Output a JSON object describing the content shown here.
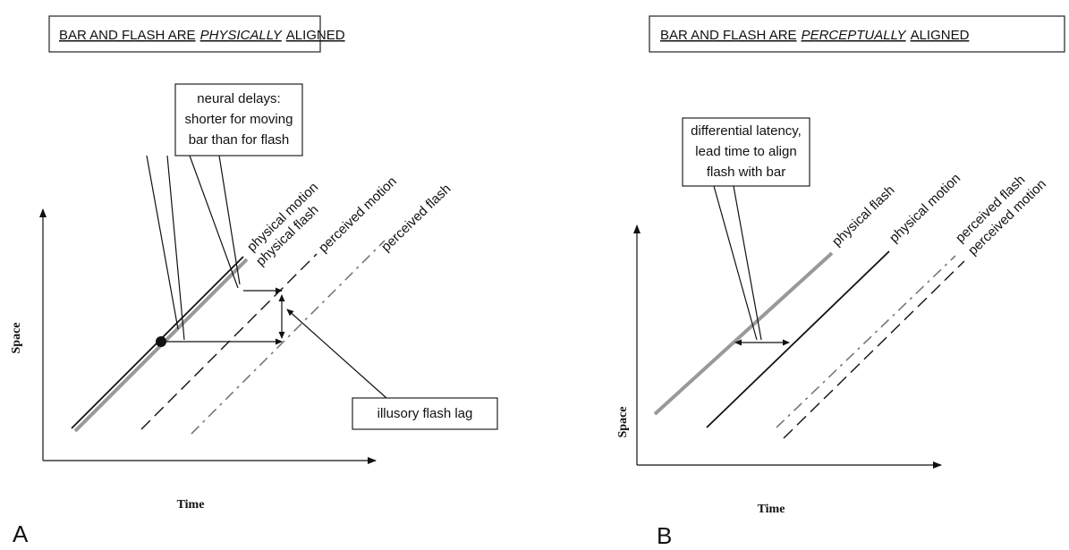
{
  "panels": [
    {
      "label": "A",
      "title": {
        "prefix": "BAR AND FLASH ARE",
        "emphasis": "PHYSICALLY",
        "suffix": "ALIGNED"
      },
      "y_axis": "Space",
      "x_axis": "Time",
      "line_labels": [
        "physical motion",
        "physical flash",
        "perceived motion",
        "perceived flash"
      ],
      "callouts": [
        {
          "lines": [
            "neural delays:",
            "shorter for moving",
            "bar than for flash"
          ]
        },
        {
          "lines": [
            "illusory flash lag"
          ]
        }
      ]
    },
    {
      "label": "B",
      "title": {
        "prefix": "BAR AND FLASH ARE",
        "emphasis": "PERCEPTUALLY",
        "suffix": "ALIGNED"
      },
      "y_axis": "Space",
      "x_axis": "Time",
      "line_labels": [
        "physical flash",
        "physical motion",
        "perceived flash",
        "perceived motion"
      ],
      "callouts": [
        {
          "lines": [
            "differential latency,",
            "lead time to align",
            "flash with bar"
          ]
        }
      ]
    }
  ]
}
